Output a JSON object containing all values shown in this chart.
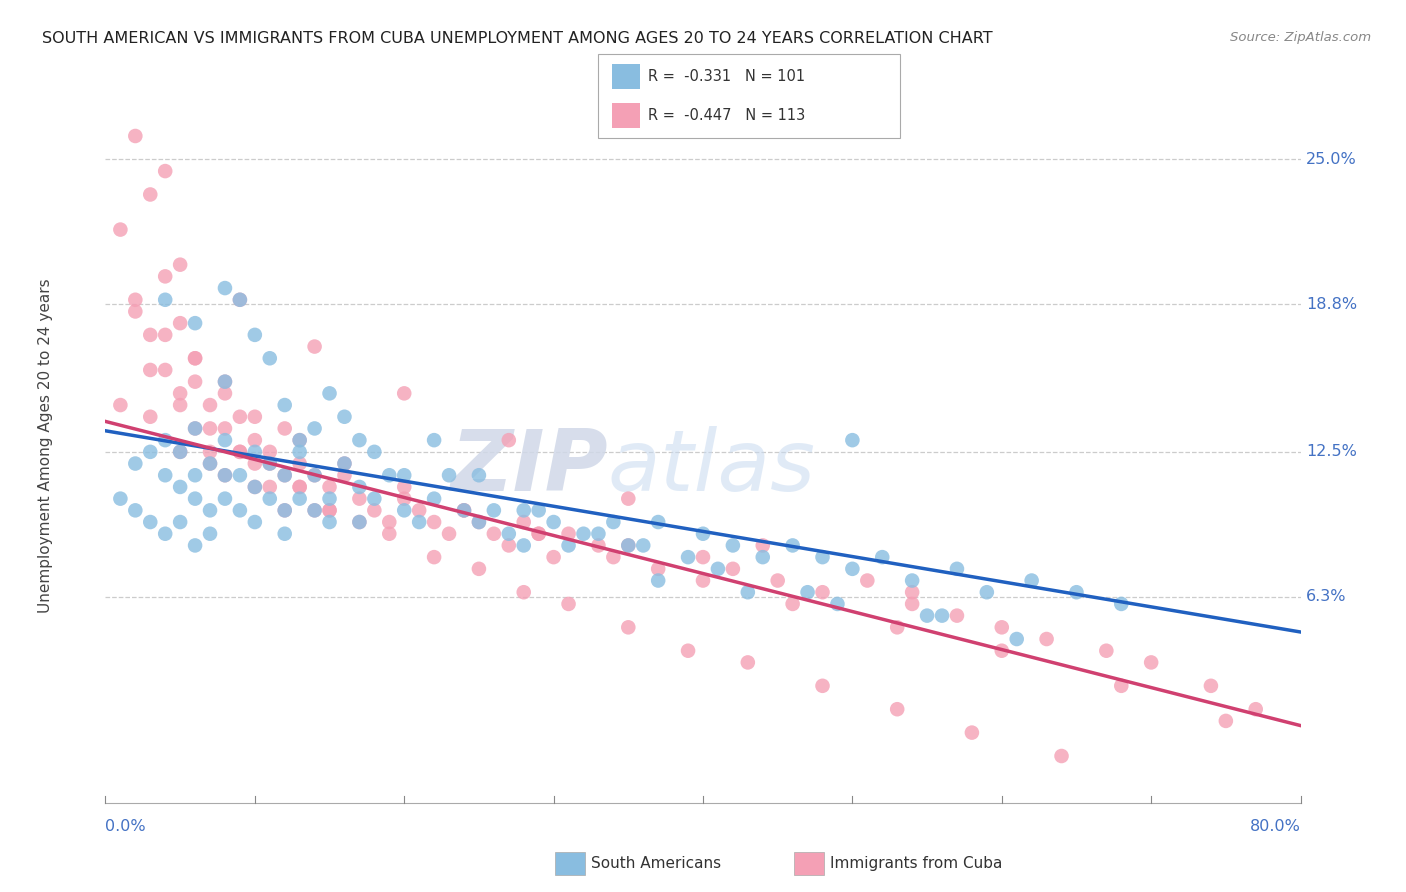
{
  "title": "SOUTH AMERICAN VS IMMIGRANTS FROM CUBA UNEMPLOYMENT AMONG AGES 20 TO 24 YEARS CORRELATION CHART",
  "source": "Source: ZipAtlas.com",
  "ylabel": "Unemployment Among Ages 20 to 24 years",
  "ytick_labels": [
    "6.3%",
    "12.5%",
    "18.8%",
    "25.0%"
  ],
  "ytick_values": [
    0.063,
    0.125,
    0.188,
    0.25
  ],
  "xmin": 0.0,
  "xmax": 0.8,
  "ymin": -0.025,
  "ymax": 0.28,
  "legend_r1": "R =  -0.331",
  "legend_n1": "N = 101",
  "legend_r2": "R =  -0.447",
  "legend_n2": "N = 113",
  "color_blue": "#89bde0",
  "color_pink": "#f4a0b5",
  "color_blue_line": "#2060c0",
  "color_pink_line": "#d04070",
  "watermark1": "ZIP",
  "watermark2": "atlas",
  "blue_line_x0": 0.0,
  "blue_line_y0": 0.134,
  "blue_line_x1": 0.8,
  "blue_line_y1": 0.048,
  "pink_line_x0": 0.0,
  "pink_line_y0": 0.138,
  "pink_line_x1": 0.8,
  "pink_line_y1": 0.008,
  "blue_scatter_x": [
    0.01,
    0.02,
    0.02,
    0.03,
    0.03,
    0.04,
    0.04,
    0.04,
    0.05,
    0.05,
    0.05,
    0.06,
    0.06,
    0.06,
    0.06,
    0.07,
    0.07,
    0.07,
    0.08,
    0.08,
    0.08,
    0.09,
    0.09,
    0.1,
    0.1,
    0.1,
    0.11,
    0.11,
    0.12,
    0.12,
    0.12,
    0.13,
    0.13,
    0.14,
    0.14,
    0.15,
    0.15,
    0.16,
    0.17,
    0.17,
    0.18,
    0.19,
    0.2,
    0.21,
    0.22,
    0.23,
    0.24,
    0.25,
    0.26,
    0.27,
    0.28,
    0.29,
    0.3,
    0.31,
    0.33,
    0.34,
    0.35,
    0.37,
    0.39,
    0.4,
    0.42,
    0.44,
    0.46,
    0.48,
    0.5,
    0.52,
    0.54,
    0.57,
    0.59,
    0.62,
    0.65,
    0.68,
    0.04,
    0.06,
    0.08,
    0.08,
    0.09,
    0.1,
    0.11,
    0.12,
    0.13,
    0.14,
    0.15,
    0.16,
    0.17,
    0.18,
    0.2,
    0.22,
    0.25,
    0.28,
    0.32,
    0.36,
    0.41,
    0.47,
    0.5,
    0.56,
    0.37,
    0.43,
    0.49,
    0.55,
    0.61
  ],
  "blue_scatter_y": [
    0.105,
    0.12,
    0.1,
    0.125,
    0.095,
    0.115,
    0.13,
    0.09,
    0.11,
    0.125,
    0.095,
    0.115,
    0.105,
    0.135,
    0.085,
    0.12,
    0.1,
    0.09,
    0.115,
    0.105,
    0.13,
    0.1,
    0.115,
    0.125,
    0.095,
    0.11,
    0.105,
    0.12,
    0.1,
    0.115,
    0.09,
    0.105,
    0.125,
    0.1,
    0.115,
    0.095,
    0.105,
    0.12,
    0.095,
    0.11,
    0.105,
    0.115,
    0.1,
    0.095,
    0.105,
    0.115,
    0.1,
    0.095,
    0.1,
    0.09,
    0.085,
    0.1,
    0.095,
    0.085,
    0.09,
    0.095,
    0.085,
    0.095,
    0.08,
    0.09,
    0.085,
    0.08,
    0.085,
    0.08,
    0.075,
    0.08,
    0.07,
    0.075,
    0.065,
    0.07,
    0.065,
    0.06,
    0.19,
    0.18,
    0.195,
    0.155,
    0.19,
    0.175,
    0.165,
    0.145,
    0.13,
    0.135,
    0.15,
    0.14,
    0.13,
    0.125,
    0.115,
    0.13,
    0.115,
    0.1,
    0.09,
    0.085,
    0.075,
    0.065,
    0.13,
    0.055,
    0.07,
    0.065,
    0.06,
    0.055,
    0.045
  ],
  "pink_scatter_x": [
    0.01,
    0.01,
    0.02,
    0.02,
    0.03,
    0.03,
    0.03,
    0.04,
    0.04,
    0.04,
    0.05,
    0.05,
    0.05,
    0.06,
    0.06,
    0.06,
    0.07,
    0.07,
    0.07,
    0.08,
    0.08,
    0.08,
    0.09,
    0.09,
    0.1,
    0.1,
    0.1,
    0.11,
    0.11,
    0.12,
    0.12,
    0.12,
    0.13,
    0.13,
    0.14,
    0.14,
    0.15,
    0.15,
    0.16,
    0.17,
    0.18,
    0.19,
    0.2,
    0.21,
    0.22,
    0.23,
    0.24,
    0.25,
    0.26,
    0.27,
    0.28,
    0.29,
    0.3,
    0.31,
    0.33,
    0.35,
    0.37,
    0.4,
    0.42,
    0.45,
    0.48,
    0.51,
    0.54,
    0.57,
    0.6,
    0.63,
    0.67,
    0.7,
    0.74,
    0.77,
    0.03,
    0.05,
    0.07,
    0.09,
    0.11,
    0.13,
    0.15,
    0.17,
    0.19,
    0.22,
    0.25,
    0.28,
    0.31,
    0.35,
    0.39,
    0.43,
    0.48,
    0.53,
    0.58,
    0.64,
    0.02,
    0.04,
    0.06,
    0.08,
    0.1,
    0.13,
    0.16,
    0.2,
    0.24,
    0.29,
    0.34,
    0.4,
    0.46,
    0.53,
    0.6,
    0.68,
    0.75,
    0.05,
    0.09,
    0.14,
    0.2,
    0.27,
    0.35,
    0.44,
    0.54
  ],
  "pink_scatter_y": [
    0.22,
    0.145,
    0.26,
    0.185,
    0.235,
    0.175,
    0.14,
    0.245,
    0.16,
    0.2,
    0.125,
    0.18,
    0.145,
    0.155,
    0.135,
    0.165,
    0.12,
    0.145,
    0.125,
    0.135,
    0.115,
    0.155,
    0.125,
    0.14,
    0.11,
    0.13,
    0.12,
    0.125,
    0.11,
    0.135,
    0.115,
    0.1,
    0.12,
    0.11,
    0.115,
    0.1,
    0.11,
    0.1,
    0.115,
    0.105,
    0.1,
    0.095,
    0.105,
    0.1,
    0.095,
    0.09,
    0.1,
    0.095,
    0.09,
    0.085,
    0.095,
    0.09,
    0.08,
    0.09,
    0.085,
    0.085,
    0.075,
    0.08,
    0.075,
    0.07,
    0.065,
    0.07,
    0.06,
    0.055,
    0.05,
    0.045,
    0.04,
    0.035,
    0.025,
    0.015,
    0.16,
    0.15,
    0.135,
    0.125,
    0.12,
    0.11,
    0.1,
    0.095,
    0.09,
    0.08,
    0.075,
    0.065,
    0.06,
    0.05,
    0.04,
    0.035,
    0.025,
    0.015,
    0.005,
    -0.005,
    0.19,
    0.175,
    0.165,
    0.15,
    0.14,
    0.13,
    0.12,
    0.11,
    0.1,
    0.09,
    0.08,
    0.07,
    0.06,
    0.05,
    0.04,
    0.025,
    0.01,
    0.205,
    0.19,
    0.17,
    0.15,
    0.13,
    0.105,
    0.085,
    0.065
  ]
}
